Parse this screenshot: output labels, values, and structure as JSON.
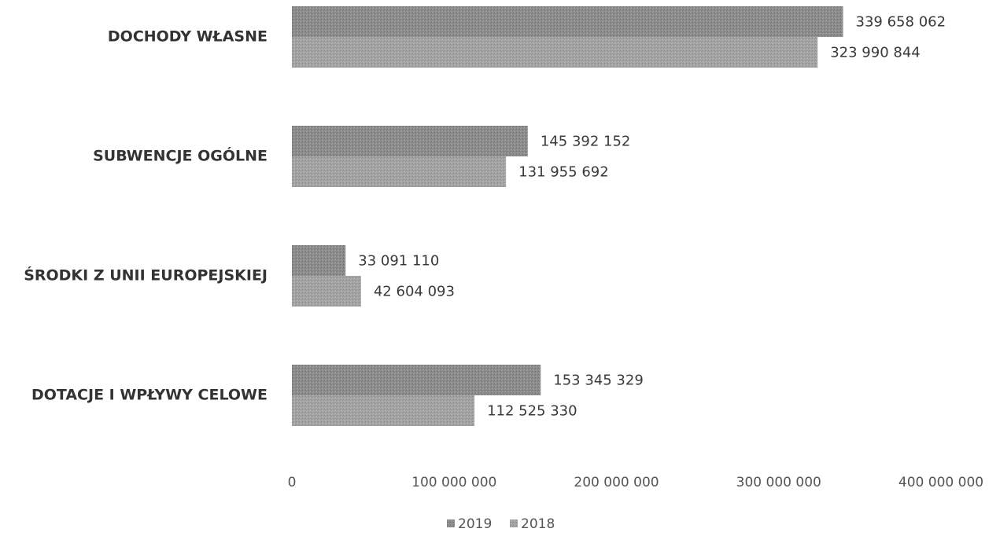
{
  "chart_data": {
    "type": "bar",
    "orientation": "horizontal",
    "categories": [
      "DOCHODY WŁASNE",
      "SUBWENCJE OGÓLNE",
      "ŚRODKI Z UNII EUROPEJSKIEJ",
      "DOTACJE I WPŁYWY CELOWE"
    ],
    "series": [
      {
        "name": "2019",
        "values": [
          339658062,
          145392152,
          33091110,
          153345329
        ],
        "labels": [
          "339 658 062",
          "145 392 152",
          "33 091 110",
          "153 345 329"
        ],
        "color": "#8f8f8f"
      },
      {
        "name": "2018",
        "values": [
          323990844,
          131955692,
          42604093,
          112525330
        ],
        "labels": [
          "323 990 844",
          "131 955 692",
          "42 604 093",
          "112 525 330"
        ],
        "color": "#a6a6a6"
      }
    ],
    "xlim": [
      0,
      400000000
    ],
    "xticks": [
      0,
      100000000,
      200000000,
      300000000,
      400000000
    ],
    "xtick_labels": [
      "0",
      "100 000 000",
      "200 000 000",
      "300 000 000",
      "400 000 000"
    ],
    "grid": false,
    "legend": "bottom-center",
    "title": "",
    "xlabel": "",
    "ylabel": ""
  }
}
